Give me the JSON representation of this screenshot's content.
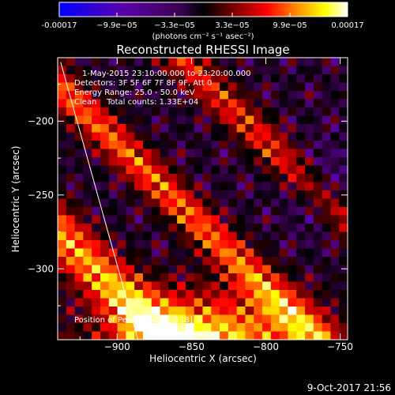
{
  "chart_data": {
    "type": "heatmap",
    "title": "Reconstructed RHESSI Image",
    "xlabel": "Heliocentric X (arcsec)",
    "ylabel": "Heliocentric Y (arcsec)",
    "xlim": [
      -940,
      -745
    ],
    "ylim": [
      -348,
      -157
    ],
    "x_ticks": [
      -900,
      -850,
      -800,
      -750
    ],
    "y_ticks": [
      -200,
      -250,
      -300
    ],
    "colorbar": {
      "min": -0.00017,
      "max": 0.00017,
      "tick_labels": [
        "-0.00017",
        "−9.9e−05",
        "−3.3e−05",
        "3.3e−05",
        "9.9e−05",
        "0.00017"
      ],
      "unit_label": "(photons cm⁻² s⁻¹ asec⁻²)",
      "colors": [
        "#0000ff",
        "#5a00aa",
        "#3a0050",
        "#000000",
        "#880000",
        "#ff0000",
        "#ff8800",
        "#ffff00",
        "#ffffff"
      ]
    },
    "annotations": {
      "time_range": "1-May-2015 23:10:00.000 to 23:20:00.000",
      "detectors": "Detectors: 3F 5F 6F 7F 8F 9F, Att 0",
      "energy": "Energy Range: 25.0 - 50.0 keV",
      "clean": "Clean    Total counts: 1.33E+04",
      "peak": "Position of Peak = [-808,-318]"
    },
    "peak": {
      "x": -808,
      "y": -318
    },
    "limb_line": [
      {
        "x": -938,
        "y": -160
      },
      {
        "x": -886,
        "y": -348
      }
    ],
    "image_grid": {
      "cols": 34,
      "rows": 34
    },
    "emission_bands": [
      {
        "side": "lower-left",
        "x0": -940,
        "y0": -345,
        "intensity": 1.0
      },
      {
        "side": "middle",
        "x0": -900,
        "y0": -300,
        "intensity": 0.7
      },
      {
        "side": "upper-right",
        "x0": -850,
        "y0": -250,
        "intensity": 0.55
      }
    ]
  },
  "footer": {
    "timestamp": "9-Oct-2017 21:56"
  }
}
